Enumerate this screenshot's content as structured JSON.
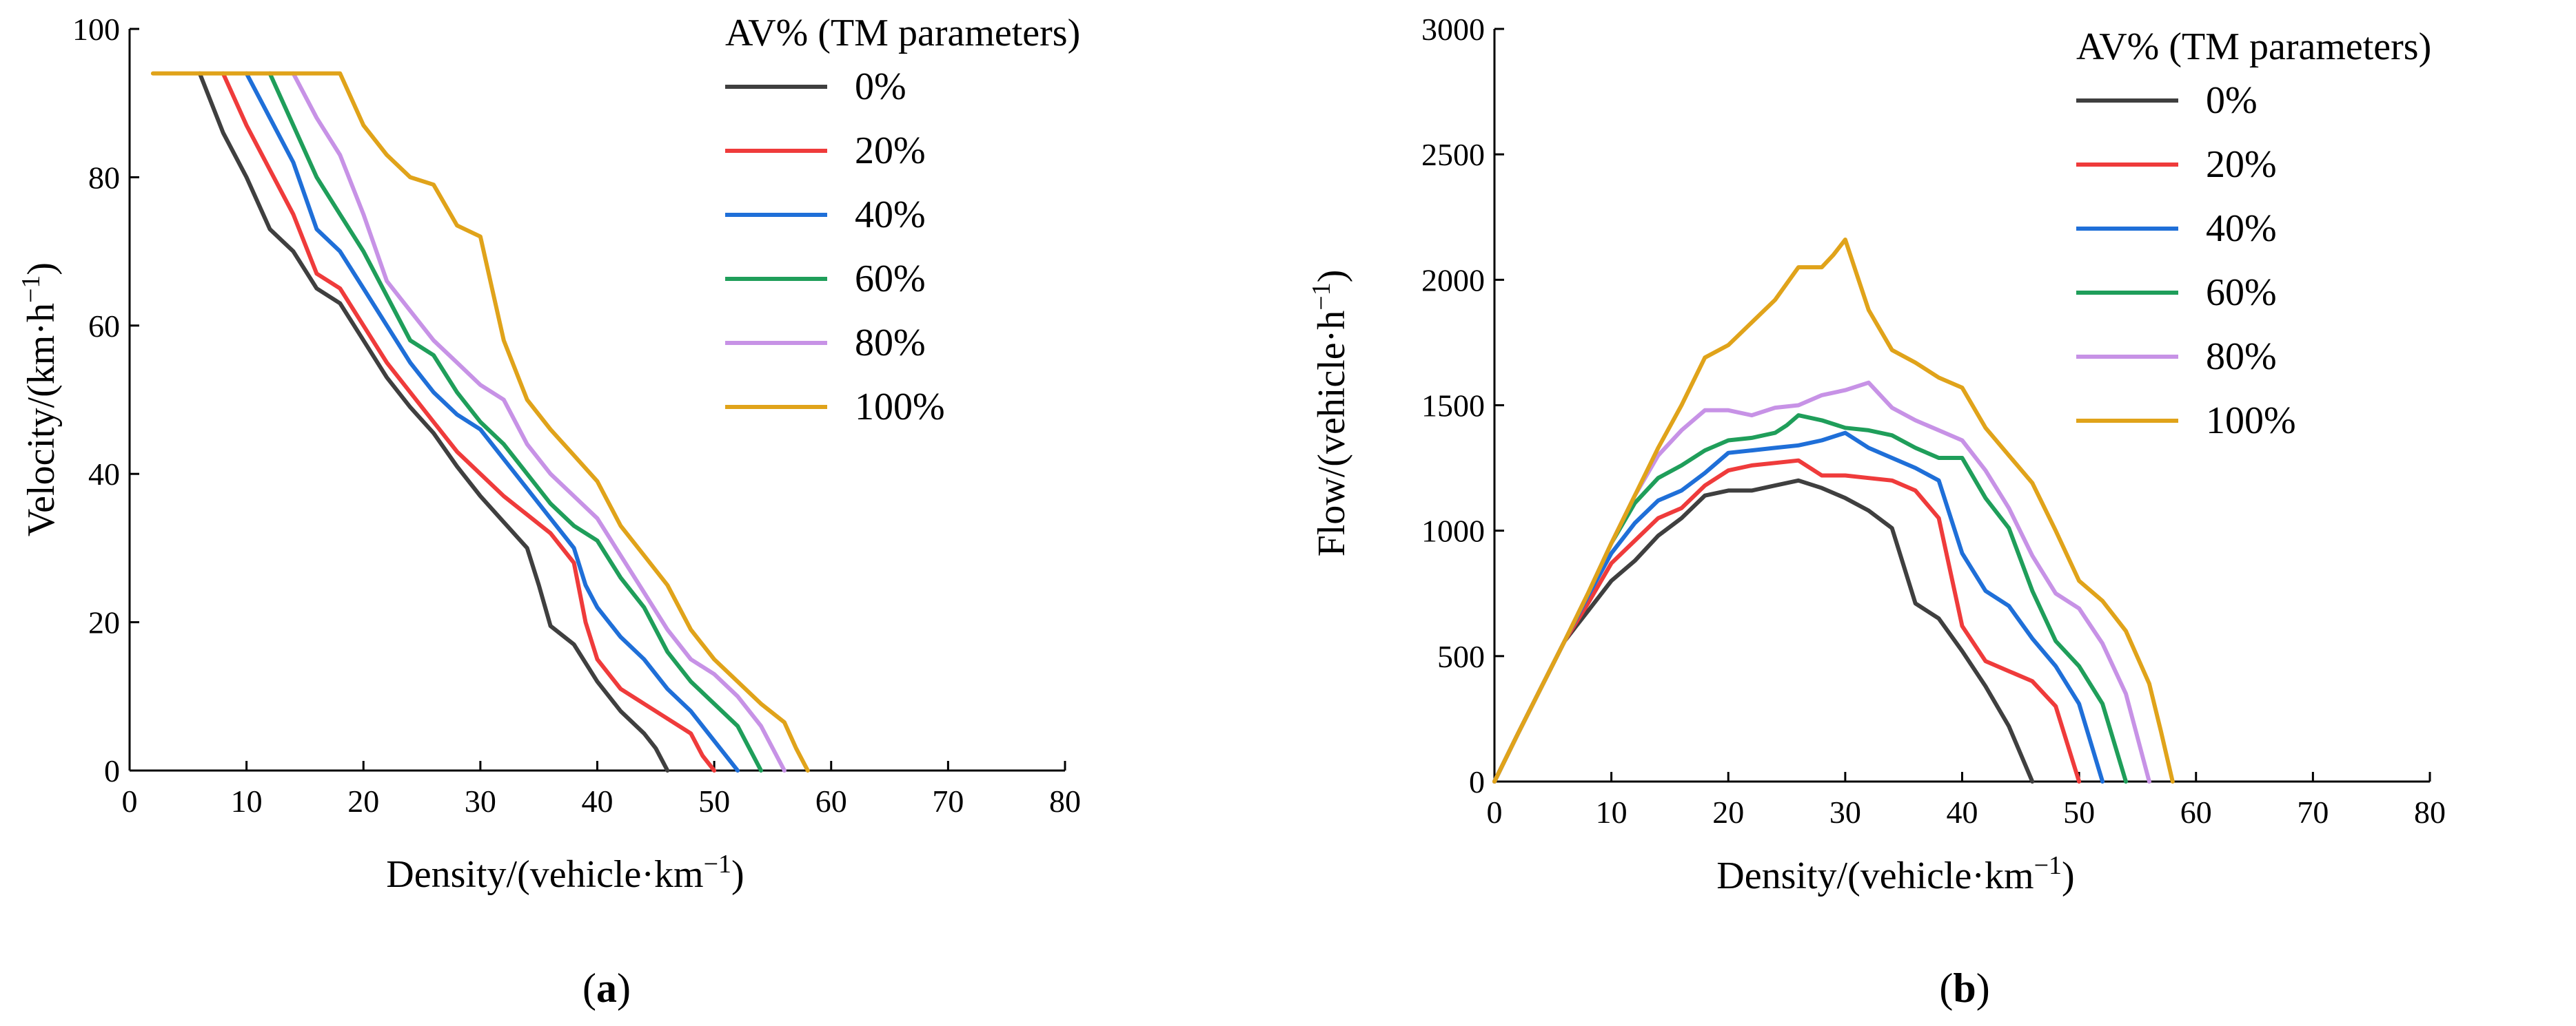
{
  "chart_data": [
    {
      "type": "line",
      "panel_label": "a",
      "xlabel_main": "Density/(vehicle·km",
      "xlabel_sup": "−1",
      "xlabel_close": ")",
      "ylabel_main": "Velocity/(km·h",
      "ylabel_sup": "−1",
      "ylabel_close": ")",
      "xlim": [
        0,
        80
      ],
      "ylim": [
        0,
        100
      ],
      "xticks": [
        "0",
        "10",
        "20",
        "30",
        "40",
        "50",
        "60",
        "70",
        "80"
      ],
      "yticks": [
        "0",
        "20",
        "40",
        "60",
        "80",
        "100"
      ],
      "legend_title": "AV% (TM parameters)",
      "legend_position": "top-right",
      "series": [
        {
          "name": "0%",
          "color": "#3f3f3f",
          "x": [
            6,
            8,
            10,
            12,
            14,
            16,
            18,
            20,
            22,
            24,
            26,
            28,
            30,
            32,
            34,
            35,
            36,
            38,
            40,
            42,
            44,
            45,
            46
          ],
          "y": [
            94,
            86,
            80,
            73,
            70,
            65,
            63,
            58,
            53,
            49,
            45.5,
            41,
            37,
            33.5,
            30,
            25,
            19.5,
            17,
            12,
            8,
            5,
            3,
            0
          ]
        },
        {
          "name": "20%",
          "color": "#ef3b3b",
          "x": [
            8,
            10,
            12,
            14,
            16,
            18,
            20,
            22,
            24,
            26,
            28,
            30,
            32,
            34,
            36,
            38,
            39,
            40,
            42,
            44,
            46,
            48,
            49,
            50
          ],
          "y": [
            94,
            87,
            81,
            75,
            67,
            65,
            60,
            55,
            51,
            47,
            43,
            40,
            37,
            34.5,
            32,
            28,
            20,
            15,
            11,
            9,
            7,
            5,
            2,
            0
          ]
        },
        {
          "name": "40%",
          "color": "#1f6fd8",
          "x": [
            10,
            12,
            14,
            16,
            18,
            20,
            22,
            24,
            26,
            28,
            30,
            32,
            34,
            36,
            38,
            39,
            40,
            42,
            44,
            46,
            48,
            50,
            52
          ],
          "y": [
            94,
            88,
            82,
            73,
            70,
            65,
            60,
            55,
            51,
            48,
            46,
            42,
            38,
            34,
            30,
            25,
            22,
            18,
            15,
            11,
            8,
            4,
            0
          ]
        },
        {
          "name": "60%",
          "color": "#1f9e5a",
          "x": [
            12,
            14,
            16,
            18,
            20,
            22,
            24,
            25,
            26,
            28,
            30,
            32,
            34,
            36,
            38,
            40,
            42,
            44,
            46,
            48,
            50,
            52,
            54
          ],
          "y": [
            94,
            87,
            80,
            75,
            70,
            64,
            58,
            57,
            56,
            51,
            47,
            44,
            40,
            36,
            33,
            31,
            26,
            22,
            16,
            12,
            9,
            6,
            0
          ]
        },
        {
          "name": "80%",
          "color": "#c792e6",
          "x": [
            14,
            16,
            18,
            20,
            22,
            24,
            26,
            28,
            30,
            32,
            34,
            36,
            38,
            40,
            42,
            44,
            46,
            48,
            50,
            52,
            54,
            56
          ],
          "y": [
            94,
            88,
            83,
            75,
            66,
            62,
            58,
            55,
            52,
            50,
            44,
            40,
            37,
            34,
            29,
            24,
            19,
            15,
            13,
            10,
            6,
            0
          ]
        },
        {
          "name": "100%",
          "color": "#e0a31a",
          "x": [
            2,
            6,
            10,
            14,
            16,
            18,
            20,
            22,
            24,
            26,
            28,
            30,
            31,
            32,
            34,
            36,
            38,
            40,
            42,
            44,
            46,
            48,
            50,
            52,
            54,
            56,
            57,
            58
          ],
          "y": [
            94,
            94,
            94,
            94,
            94,
            94,
            87,
            83,
            80,
            79,
            73.5,
            72,
            65,
            58,
            50,
            46,
            42.5,
            39,
            33,
            29,
            25,
            19,
            15,
            12,
            9,
            6.5,
            3,
            0
          ]
        }
      ]
    },
    {
      "type": "line",
      "panel_label": "b",
      "xlabel_main": "Density/(vehicle·km",
      "xlabel_sup": "−1",
      "xlabel_close": ")",
      "ylabel_main": "Flow/(vehicle·h",
      "ylabel_sup": "−1",
      "ylabel_close": ")",
      "xlim": [
        0,
        80
      ],
      "ylim": [
        0,
        3000
      ],
      "xticks": [
        "0",
        "10",
        "20",
        "30",
        "40",
        "50",
        "60",
        "70",
        "80"
      ],
      "yticks": [
        "0",
        "500",
        "1000",
        "1500",
        "2000",
        "2500",
        "3000"
      ],
      "legend_title": "AV% (TM parameters)",
      "legend_position": "top-right",
      "series": [
        {
          "name": "0%",
          "color": "#3f3f3f",
          "x": [
            0,
            2,
            4,
            6,
            7,
            8,
            10,
            12,
            14,
            16,
            18,
            20,
            22,
            24,
            26,
            28,
            30,
            32,
            34,
            36,
            38,
            40,
            42,
            44,
            46
          ],
          "y": [
            0,
            190,
            375,
            560,
            620,
            680,
            800,
            880,
            980,
            1050,
            1140,
            1160,
            1160,
            1180,
            1200,
            1170,
            1130,
            1080,
            1010,
            710,
            650,
            520,
            380,
            220,
            0
          ]
        },
        {
          "name": "20%",
          "color": "#ef3b3b",
          "x": [
            0,
            2,
            4,
            6,
            8,
            10,
            12,
            14,
            16,
            18,
            20,
            22,
            24,
            26,
            28,
            30,
            32,
            34,
            36,
            38,
            40,
            42,
            44,
            46,
            48,
            50
          ],
          "y": [
            0,
            190,
            375,
            560,
            710,
            870,
            960,
            1050,
            1090,
            1180,
            1240,
            1260,
            1270,
            1280,
            1220,
            1220,
            1210,
            1200,
            1160,
            1050,
            620,
            480,
            440,
            400,
            300,
            0
          ]
        },
        {
          "name": "40%",
          "color": "#1f6fd8",
          "x": [
            0,
            2,
            4,
            6,
            8,
            10,
            12,
            14,
            16,
            18,
            20,
            22,
            24,
            26,
            28,
            30,
            32,
            34,
            36,
            38,
            40,
            42,
            44,
            46,
            48,
            50,
            52
          ],
          "y": [
            0,
            190,
            375,
            560,
            740,
            910,
            1030,
            1120,
            1160,
            1230,
            1310,
            1320,
            1330,
            1340,
            1360,
            1390,
            1330,
            1290,
            1250,
            1200,
            910,
            760,
            700,
            570,
            460,
            310,
            0
          ]
        },
        {
          "name": "60%",
          "color": "#1f9e5a",
          "x": [
            0,
            2,
            4,
            6,
            8,
            10,
            12,
            14,
            16,
            18,
            20,
            22,
            24,
            25,
            26,
            28,
            30,
            32,
            34,
            36,
            38,
            40,
            42,
            44,
            46,
            48,
            50,
            52,
            54
          ],
          "y": [
            0,
            190,
            375,
            560,
            750,
            950,
            1110,
            1210,
            1260,
            1320,
            1360,
            1370,
            1390,
            1420,
            1460,
            1440,
            1410,
            1400,
            1380,
            1330,
            1290,
            1290,
            1130,
            1010,
            760,
            560,
            460,
            310,
            0
          ]
        },
        {
          "name": "80%",
          "color": "#c792e6",
          "x": [
            0,
            2,
            4,
            6,
            8,
            10,
            12,
            14,
            16,
            18,
            20,
            22,
            24,
            26,
            28,
            30,
            32,
            34,
            36,
            38,
            40,
            42,
            44,
            46,
            48,
            50,
            52,
            54,
            56
          ],
          "y": [
            0,
            190,
            375,
            560,
            750,
            950,
            1140,
            1300,
            1400,
            1480,
            1480,
            1460,
            1490,
            1500,
            1540,
            1560,
            1590,
            1490,
            1440,
            1400,
            1360,
            1240,
            1090,
            900,
            750,
            690,
            550,
            350,
            0
          ]
        },
        {
          "name": "100%",
          "color": "#e0a31a",
          "x": [
            0,
            2,
            4,
            6,
            8,
            10,
            12,
            14,
            16,
            18,
            20,
            22,
            24,
            26,
            28,
            29,
            30,
            31,
            32,
            34,
            36,
            38,
            40,
            42,
            44,
            46,
            48,
            50,
            52,
            54,
            56,
            57,
            58
          ],
          "y": [
            0,
            190,
            375,
            560,
            750,
            950,
            1140,
            1330,
            1500,
            1690,
            1740,
            1830,
            1920,
            2050,
            2050,
            2100,
            2160,
            2020,
            1880,
            1720,
            1670,
            1610,
            1570,
            1410,
            1300,
            1190,
            1000,
            800,
            720,
            600,
            390,
            200,
            0
          ]
        }
      ]
    }
  ]
}
